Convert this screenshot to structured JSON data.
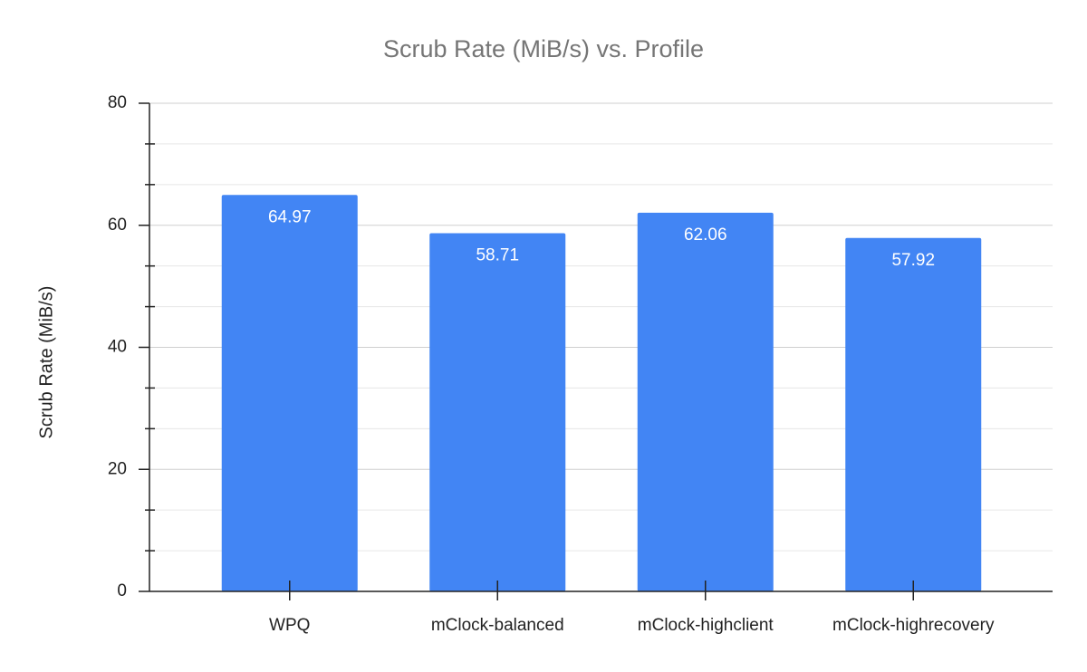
{
  "chart_data": {
    "type": "bar",
    "title": "Scrub Rate (MiB/s) vs. Profile",
    "y_label": "Scrub Rate (MiB/s)",
    "categories": [
      "WPQ",
      "mClock-balanced",
      "mClock-highclient",
      "mClock-highrecovery"
    ],
    "values": [
      64.97,
      58.71,
      62.06,
      57.92
    ],
    "color": "#4285f4",
    "ylim": [
      0,
      80
    ],
    "yticks": [
      0,
      20,
      40,
      60,
      80
    ],
    "grid": true
  }
}
